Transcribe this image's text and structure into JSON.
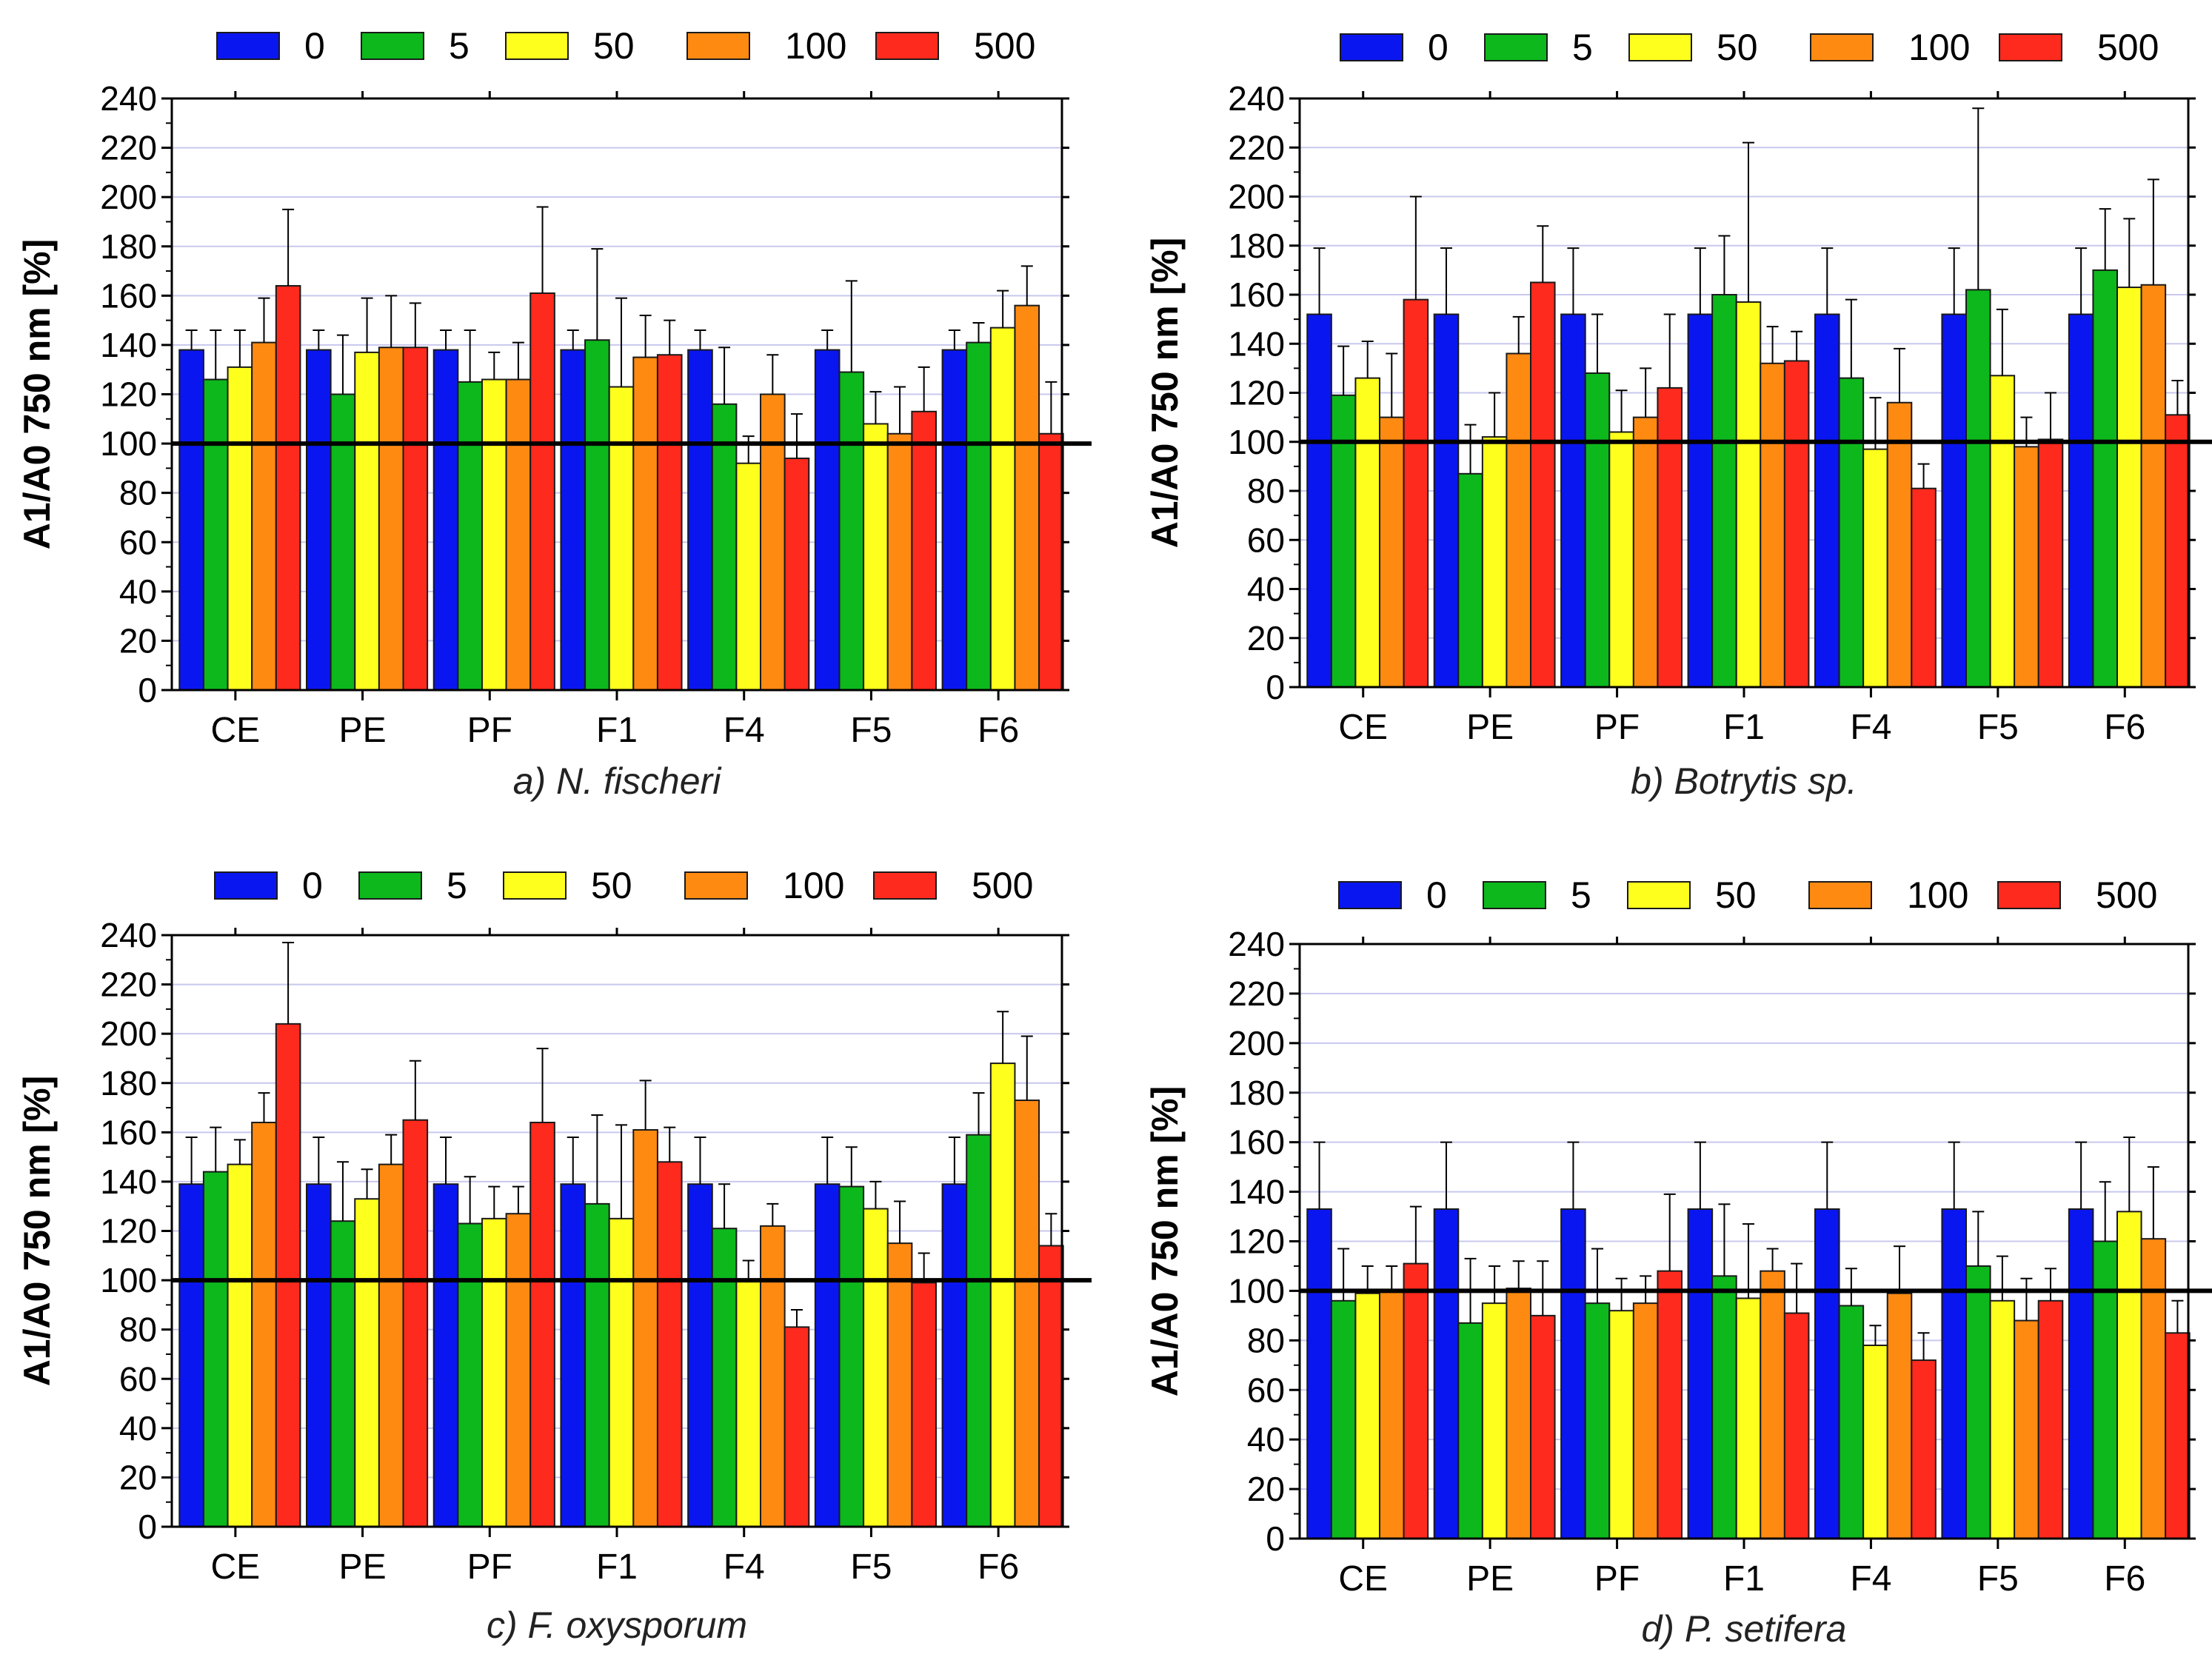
{
  "colors": {
    "series": [
      "#0a16f0",
      "#0cb81c",
      "#ffff1e",
      "#ff8a12",
      "#ff2a1e"
    ],
    "gridline": "#c8c8ee",
    "reference_line": "#000000"
  },
  "legend": {
    "entries": [
      "0",
      "5",
      "50",
      "100",
      "500"
    ]
  },
  "chart_data": [
    {
      "type": "bar",
      "panel": "a",
      "caption": "a) N. fischeri",
      "categories": [
        "CE",
        "PE",
        "PF",
        "F1",
        "F4",
        "F5",
        "F6"
      ],
      "ylabel": "A1/A0 750 nm [%]",
      "ylim": [
        0,
        240
      ],
      "yticks": [
        0,
        20,
        40,
        60,
        80,
        100,
        120,
        140,
        160,
        180,
        200,
        220,
        240
      ],
      "reference_line": 100,
      "series": [
        {
          "name": "0",
          "values": [
            138,
            138,
            138,
            138,
            138,
            138,
            138
          ],
          "errors": [
            8,
            8,
            8,
            8,
            8,
            8,
            8
          ]
        },
        {
          "name": "5",
          "values": [
            126,
            120,
            125,
            142,
            116,
            129,
            141
          ],
          "errors": [
            20,
            24,
            21,
            37,
            23,
            37,
            8
          ]
        },
        {
          "name": "50",
          "values": [
            131,
            137,
            126,
            123,
            92,
            108,
            147
          ],
          "errors": [
            15,
            22,
            11,
            36,
            11,
            13,
            15
          ]
        },
        {
          "name": "100",
          "values": [
            141,
            139,
            126,
            135,
            120,
            104,
            156
          ],
          "errors": [
            18,
            21,
            15,
            17,
            16,
            19,
            16
          ]
        },
        {
          "name": "500",
          "values": [
            164,
            139,
            161,
            136,
            94,
            113,
            104
          ],
          "errors": [
            31,
            18,
            35,
            14,
            18,
            18,
            21
          ]
        }
      ]
    },
    {
      "type": "bar",
      "panel": "b",
      "caption": "b) Botrytis sp.",
      "categories": [
        "CE",
        "PE",
        "PF",
        "F1",
        "F4",
        "F5",
        "F6"
      ],
      "ylabel": "A1/A0 750 nm [%]",
      "ylim": [
        0,
        240
      ],
      "yticks": [
        0,
        20,
        40,
        60,
        80,
        100,
        120,
        140,
        160,
        180,
        200,
        220,
        240
      ],
      "reference_line": 100,
      "series": [
        {
          "name": "0",
          "values": [
            152,
            152,
            152,
            152,
            152,
            152,
            152
          ],
          "errors": [
            27,
            27,
            27,
            27,
            27,
            27,
            27
          ]
        },
        {
          "name": "5",
          "values": [
            119,
            87,
            128,
            160,
            126,
            162,
            170
          ],
          "errors": [
            20,
            20,
            24,
            24,
            32,
            74,
            25
          ]
        },
        {
          "name": "50",
          "values": [
            126,
            102,
            104,
            157,
            97,
            127,
            163
          ],
          "errors": [
            15,
            18,
            17,
            65,
            21,
            27,
            28
          ]
        },
        {
          "name": "100",
          "values": [
            110,
            136,
            110,
            132,
            116,
            98,
            164
          ],
          "errors": [
            26,
            15,
            20,
            15,
            22,
            12,
            43
          ]
        },
        {
          "name": "500",
          "values": [
            158,
            165,
            122,
            133,
            81,
            101,
            111
          ],
          "errors": [
            42,
            23,
            30,
            12,
            10,
            19,
            14
          ]
        }
      ]
    },
    {
      "type": "bar",
      "panel": "c",
      "caption": "c) F. oxysporum",
      "categories": [
        "CE",
        "PE",
        "PF",
        "F1",
        "F4",
        "F5",
        "F6"
      ],
      "ylabel": "A1/A0 750 nm [%]",
      "ylim": [
        0,
        240
      ],
      "yticks": [
        0,
        20,
        40,
        60,
        80,
        100,
        120,
        140,
        160,
        180,
        200,
        220,
        240
      ],
      "reference_line": 100,
      "series": [
        {
          "name": "0",
          "values": [
            139,
            139,
            139,
            139,
            139,
            139,
            139
          ],
          "errors": [
            19,
            19,
            19,
            19,
            19,
            19,
            19
          ]
        },
        {
          "name": "5",
          "values": [
            144,
            124,
            123,
            131,
            121,
            138,
            159
          ],
          "errors": [
            18,
            24,
            19,
            36,
            18,
            16,
            17
          ]
        },
        {
          "name": "50",
          "values": [
            147,
            133,
            125,
            125,
            100,
            129,
            188
          ],
          "errors": [
            10,
            12,
            13,
            38,
            8,
            11,
            21
          ]
        },
        {
          "name": "100",
          "values": [
            164,
            147,
            127,
            161,
            122,
            115,
            173
          ],
          "errors": [
            12,
            12,
            11,
            20,
            9,
            17,
            26
          ]
        },
        {
          "name": "500",
          "values": [
            204,
            165,
            164,
            148,
            81,
            99,
            114
          ],
          "errors": [
            33,
            24,
            30,
            14,
            7,
            12,
            13
          ]
        }
      ]
    },
    {
      "type": "bar",
      "panel": "d",
      "caption": "d) P. setifera",
      "categories": [
        "CE",
        "PE",
        "PF",
        "F1",
        "F4",
        "F5",
        "F6"
      ],
      "ylabel": "A1/A0 750 nm [%]",
      "ylim": [
        0,
        240
      ],
      "yticks": [
        0,
        20,
        40,
        60,
        80,
        100,
        120,
        140,
        160,
        180,
        200,
        220,
        240
      ],
      "reference_line": 100,
      "series": [
        {
          "name": "0",
          "values": [
            133,
            133,
            133,
            133,
            133,
            133,
            133
          ],
          "errors": [
            27,
            27,
            27,
            27,
            27,
            27,
            27
          ]
        },
        {
          "name": "5",
          "values": [
            96,
            87,
            95,
            106,
            94,
            110,
            120
          ],
          "errors": [
            21,
            26,
            22,
            29,
            15,
            22,
            24
          ]
        },
        {
          "name": "50",
          "values": [
            99,
            95,
            92,
            97,
            78,
            96,
            132
          ],
          "errors": [
            11,
            15,
            13,
            30,
            8,
            18,
            30
          ]
        },
        {
          "name": "100",
          "values": [
            100,
            101,
            95,
            108,
            99,
            88,
            121
          ],
          "errors": [
            10,
            11,
            11,
            9,
            19,
            17,
            29
          ]
        },
        {
          "name": "500",
          "values": [
            111,
            90,
            108,
            91,
            72,
            96,
            83
          ],
          "errors": [
            23,
            22,
            31,
            20,
            11,
            13,
            13
          ]
        }
      ]
    }
  ]
}
